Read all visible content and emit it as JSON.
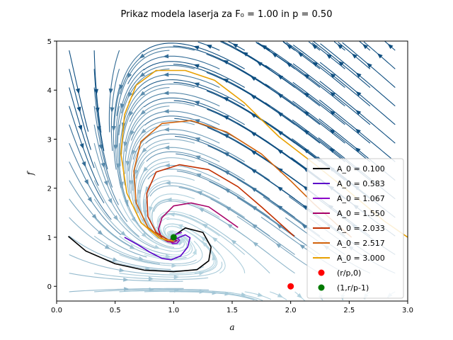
{
  "chart_data": {
    "type": "line",
    "title": "Prikaz modela laserja za F₀ = 1.00 in p = 0.50",
    "xlabel": "a",
    "ylabel": "f",
    "xlim": [
      0,
      3
    ],
    "ylim": [
      -0.3,
      5
    ],
    "xticks": [
      "0.0",
      "0.5",
      "1.0",
      "1.5",
      "2.0",
      "2.5",
      "3.0"
    ],
    "yticks": [
      "0",
      "1",
      "2",
      "3",
      "4",
      "5"
    ],
    "legend_position": "lower-right",
    "background": "streamplot",
    "series": [
      {
        "name": "A_0 = 0.100",
        "color": "#000000",
        "x": [
          0.1,
          0.25,
          0.5,
          0.75,
          1.0,
          1.2,
          1.3,
          1.32,
          1.25,
          1.1,
          1.02,
          1.0
        ],
        "y": [
          1.02,
          0.72,
          0.46,
          0.33,
          0.3,
          0.34,
          0.52,
          0.8,
          1.1,
          1.19,
          1.06,
          0.95
        ]
      },
      {
        "name": "A_0 = 0.583",
        "color": "#5b00c9",
        "x": [
          0.58,
          0.7,
          0.8,
          0.9,
          0.98,
          1.06,
          1.12,
          1.14,
          1.1,
          1.04,
          1.0
        ],
        "y": [
          1.0,
          0.84,
          0.69,
          0.57,
          0.54,
          0.62,
          0.8,
          0.99,
          1.05,
          0.99,
          0.94
        ]
      },
      {
        "name": "A_0 = 1.067",
        "color": "#8b00c9",
        "x": [
          1.07,
          1.02,
          0.98,
          0.97,
          0.99,
          1.03,
          1.05,
          1.03,
          1.0
        ],
        "y": [
          1.1,
          1.06,
          1.0,
          0.93,
          0.87,
          0.88,
          0.94,
          0.98,
          0.94
        ]
      },
      {
        "name": "A_0 = 1.550",
        "color": "#a80068",
        "x": [
          1.55,
          1.42,
          1.3,
          1.15,
          1.0,
          0.9,
          0.87,
          0.9,
          0.95,
          1.0,
          1.03,
          1.0
        ],
        "y": [
          1.2,
          1.42,
          1.62,
          1.7,
          1.64,
          1.4,
          1.16,
          0.98,
          0.91,
          0.9,
          0.93,
          0.95
        ]
      },
      {
        "name": "A_0 = 2.033",
        "color": "#c23000",
        "x": [
          2.03,
          1.9,
          1.75,
          1.55,
          1.3,
          1.05,
          0.85,
          0.77,
          0.78,
          0.85,
          0.95,
          1.0
        ],
        "y": [
          1.02,
          1.3,
          1.62,
          2.03,
          2.38,
          2.48,
          2.33,
          1.9,
          1.42,
          1.1,
          0.95,
          0.93
        ]
      },
      {
        "name": "A_0 = 2.517",
        "color": "#d2620a",
        "x": [
          2.52,
          2.4,
          2.2,
          2.0,
          1.75,
          1.45,
          1.15,
          0.9,
          0.72,
          0.66,
          0.68,
          0.78,
          0.92,
          1.0
        ],
        "y": [
          1.0,
          1.25,
          1.68,
          2.15,
          2.7,
          3.15,
          3.38,
          3.32,
          2.95,
          2.35,
          1.7,
          1.2,
          0.95,
          0.92
        ]
      },
      {
        "name": "A_0 = 3.000",
        "color": "#e8a000",
        "x": [
          3.0,
          2.8,
          2.5,
          2.2,
          1.9,
          1.6,
          1.35,
          1.1,
          0.85,
          0.68,
          0.58,
          0.55,
          0.6,
          0.72,
          0.88,
          1.0
        ],
        "y": [
          1.0,
          1.33,
          1.93,
          2.5,
          3.05,
          3.75,
          4.2,
          4.4,
          4.4,
          4.1,
          3.5,
          2.7,
          1.9,
          1.3,
          0.98,
          0.92
        ]
      }
    ],
    "points": [
      {
        "name": "(r/p,0)",
        "color": "#ff0000",
        "x": 2.0,
        "y": 0.0
      },
      {
        "name": "(1,r/p-1)",
        "color": "#007a00",
        "x": 1.0,
        "y": 1.0
      }
    ]
  }
}
